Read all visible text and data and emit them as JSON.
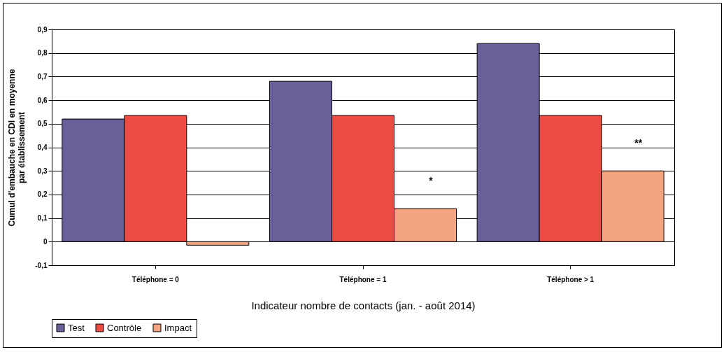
{
  "chart_data": {
    "type": "bar",
    "xlabel": "Indicateur nombre de contacts (jan. - août 2014)",
    "ylabel": "Cumul d'embauche en CDI en moyenne par établissement",
    "categories": [
      "Téléphone = 0",
      "Téléphone = 1",
      "Téléphone > 1"
    ],
    "series": [
      {
        "name": "Test",
        "color": "#6a5f98",
        "values": [
          0.52,
          0.68,
          0.84
        ]
      },
      {
        "name": "Contrôle",
        "color": "#ee4b44",
        "values": [
          0.535,
          0.535,
          0.535
        ]
      },
      {
        "name": "Impact",
        "color": "#f5a482",
        "values": [
          -0.015,
          0.14,
          0.3
        ]
      }
    ],
    "ylim": [
      -0.1,
      0.9
    ],
    "yticks": [
      {
        "value": -0.1,
        "label": "-0,1"
      },
      {
        "value": 0,
        "label": "0"
      },
      {
        "value": 0.1,
        "label": "0,1"
      },
      {
        "value": 0.2,
        "label": "0,2"
      },
      {
        "value": 0.3,
        "label": "0,3"
      },
      {
        "value": 0.4,
        "label": "0,4"
      },
      {
        "value": 0.5,
        "label": "0,5"
      },
      {
        "value": 0.6,
        "label": "0,6"
      },
      {
        "value": 0.7,
        "label": "0,7"
      },
      {
        "value": 0.8,
        "label": "0,8"
      },
      {
        "value": 0.9,
        "label": "0,9"
      }
    ],
    "annotations": [
      "*",
      "**"
    ],
    "grid": "y",
    "legend": "bottom"
  }
}
